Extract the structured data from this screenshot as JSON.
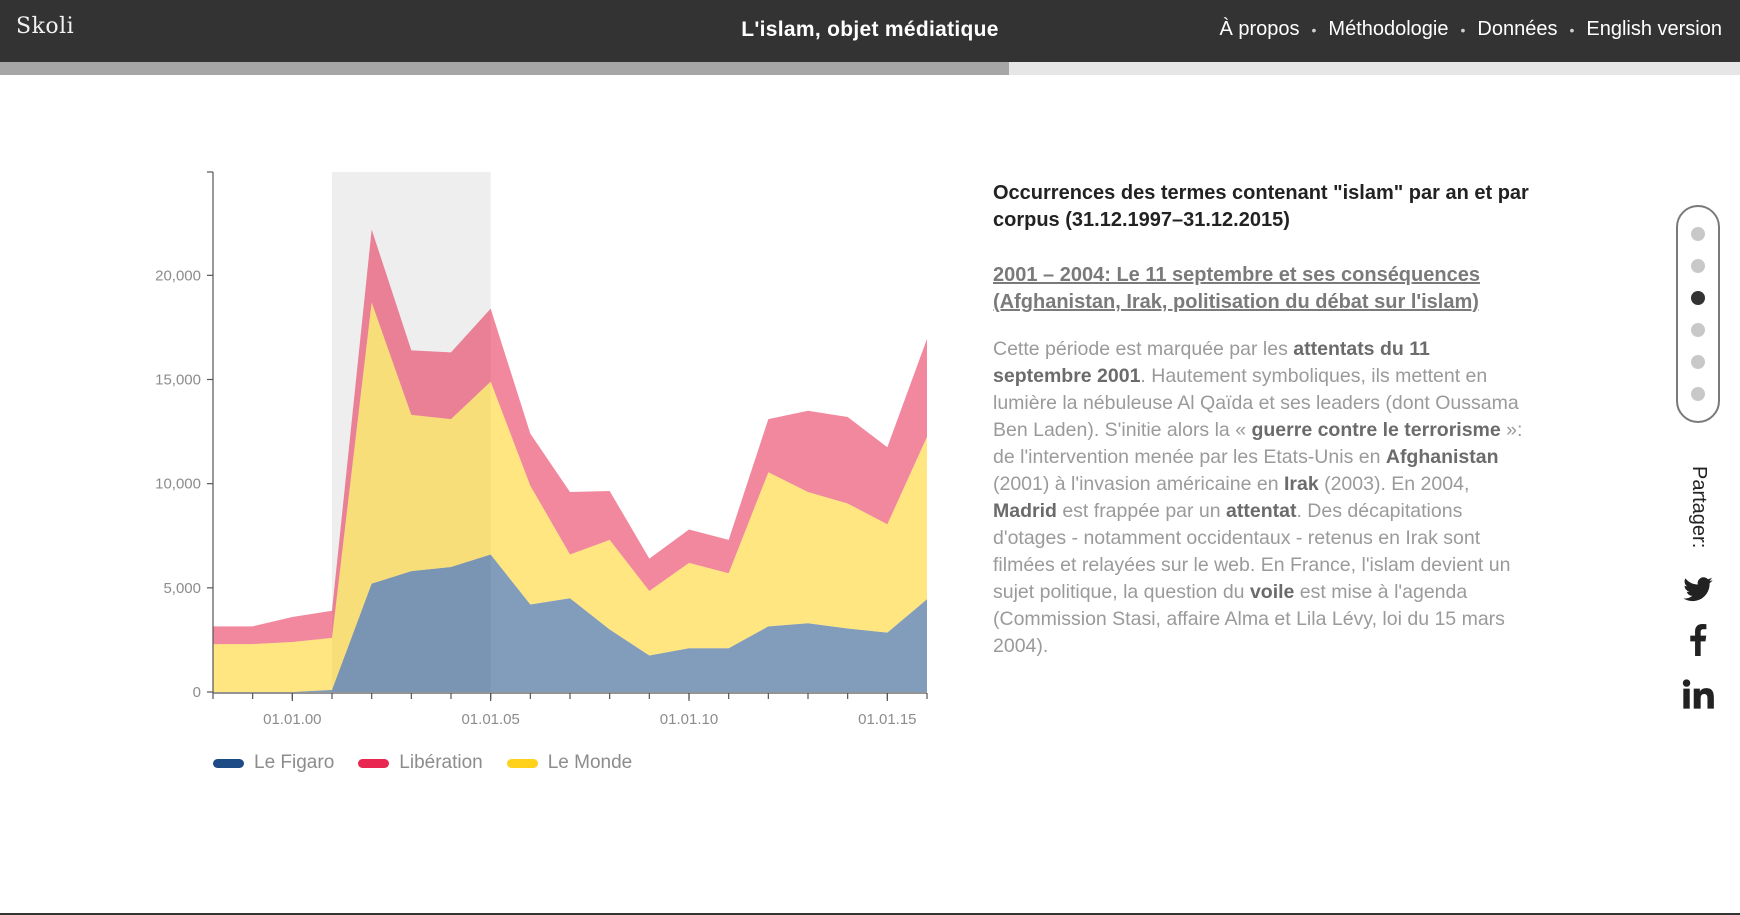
{
  "header": {
    "logo": "Skoli",
    "title": "L'islam, objet médiatique",
    "nav": [
      "À propos",
      "Méthodologie",
      "Données",
      "English version"
    ]
  },
  "progress": {
    "fraction": 0.58
  },
  "chart_data": {
    "type": "area",
    "stacked": true,
    "x": [
      "1998",
      "1999",
      "2000",
      "2001",
      "2002",
      "2003",
      "2004",
      "2005",
      "2006",
      "2007",
      "2008",
      "2009",
      "2010",
      "2011",
      "2012",
      "2013",
      "2014",
      "2015",
      "2016"
    ],
    "x_tick_labels": [
      "01.01.00",
      "01.01.05",
      "01.01.10",
      "01.01.15"
    ],
    "y_tick_labels": [
      "0",
      "5,000",
      "10,000",
      "15,000",
      "20,000"
    ],
    "ylim": [
      0,
      24000
    ],
    "highlight_range": [
      "2001",
      "2005"
    ],
    "series": [
      {
        "name": "Le Figaro",
        "color": "#1c4b85",
        "values": [
          0,
          0,
          0,
          100,
          5200,
          5800,
          6000,
          6600,
          4200,
          4500,
          3000,
          1750,
          2100,
          2100,
          3150,
          3300,
          3050,
          2850,
          4450
        ]
      },
      {
        "name": "Le Monde",
        "color": "#ffd11a",
        "values": [
          2300,
          2300,
          2400,
          2500,
          13500,
          7500,
          7100,
          8300,
          5700,
          2100,
          4300,
          3100,
          4100,
          3600,
          7400,
          6300,
          6000,
          5200,
          7800
        ]
      },
      {
        "name": "Libération",
        "color": "#e8264f",
        "values": [
          850,
          850,
          1200,
          1300,
          3500,
          3100,
          3200,
          3500,
          2500,
          3000,
          2350,
          1550,
          1600,
          1600,
          2550,
          3900,
          4150,
          3700,
          4700
        ]
      }
    ],
    "legend": [
      "Le Figaro",
      "Libération",
      "Le Monde"
    ],
    "legend_position": "bottom-left",
    "grid": false
  },
  "panel": {
    "title": "Occurrences des termes contenant \"islam\" par an et par corpus (31.12.1997–31.12.2015)",
    "subtitle": "2001 – 2004: Le 11 septembre et ses conséquences (Afghanistan, Irak, politisation du débat sur l'islam)",
    "body": [
      {
        "t": "Cette période est marquée par les "
      },
      {
        "t": "attentats du 11 septembre 2001",
        "b": true
      },
      {
        "t": ". Hautement symboliques, ils mettent en lumière la nébuleuse Al Qaïda et ses leaders (dont Oussama Ben Laden). S'initie alors la « "
      },
      {
        "t": "guerre contre le terrorisme",
        "b": true
      },
      {
        "t": " »: de l'intervention menée par les Etats-Unis en "
      },
      {
        "t": "Afghanistan",
        "b": true
      },
      {
        "t": " (2001) à l'invasion américaine en "
      },
      {
        "t": "Irak",
        "b": true
      },
      {
        "t": " (2003). En 2004, "
      },
      {
        "t": "Madrid",
        "b": true
      },
      {
        "t": " est frappée par un "
      },
      {
        "t": "attentat",
        "b": true
      },
      {
        "t": ". Des décapitations d'otages - notamment occidentaux - retenus en Irak sont filmées et relayées sur le web. En France, l'islam devient un sujet politique, la question du "
      },
      {
        "t": "voile",
        "b": true
      },
      {
        "t": " est mise à l'agenda (Commission Stasi, affaire Alma et Lila Lévy, loi du 15 mars 2004)."
      }
    ]
  },
  "sidenav": {
    "count": 6,
    "active": 2
  },
  "share": {
    "label": "Partager:",
    "icons": [
      "twitter-icon",
      "facebook-icon",
      "linkedin-icon"
    ]
  }
}
